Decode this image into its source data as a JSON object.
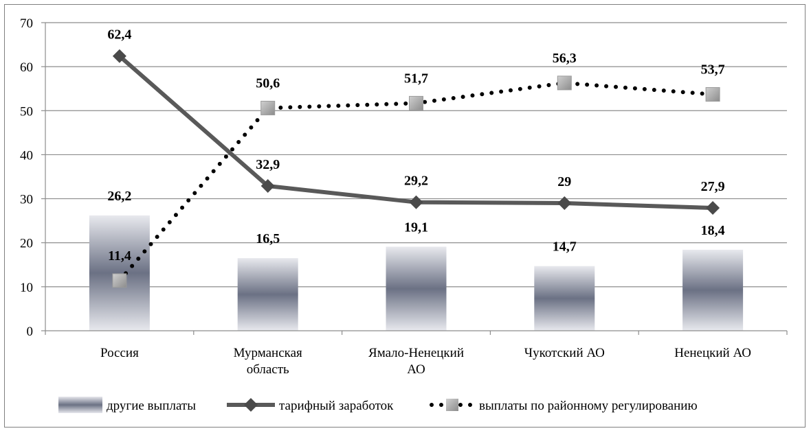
{
  "chart_data": {
    "type": "bar+line",
    "title": "",
    "xlabel": "",
    "ylabel": "",
    "ylim": [
      0,
      70
    ],
    "yticks": [
      0,
      10,
      20,
      30,
      40,
      50,
      60,
      70
    ],
    "grid": true,
    "legend_position": "bottom",
    "categories": [
      [
        "Россия"
      ],
      [
        "Мурманская",
        "область"
      ],
      [
        "Ямало-Ненецкий",
        "АО"
      ],
      [
        "Чукотский АО"
      ],
      [
        "Ненецкий АО"
      ]
    ],
    "series": [
      {
        "name": "другие выплаты",
        "kind": "bar",
        "values": [
          26.2,
          16.5,
          19.1,
          14.7,
          18.4
        ],
        "labels": [
          "26,2",
          "16,5",
          "19,1",
          "14,7",
          "18,4"
        ],
        "color": "#6f7585"
      },
      {
        "name": "тарифный заработок",
        "kind": "line-solid-diamond",
        "values": [
          62.4,
          32.9,
          29.2,
          29,
          27.9
        ],
        "labels": [
          "62,4",
          "32,9",
          "29,2",
          "29",
          "27,9"
        ],
        "color": "#595959"
      },
      {
        "name": "выплаты по районному регулированию",
        "kind": "line-dotted-square",
        "values": [
          11.4,
          50.6,
          51.7,
          56.3,
          53.7
        ],
        "labels": [
          "11,4",
          "50,6",
          "51,7",
          "56,3",
          "53,7"
        ],
        "color": "#000000",
        "marker_color": "#a6a6a6"
      }
    ]
  }
}
